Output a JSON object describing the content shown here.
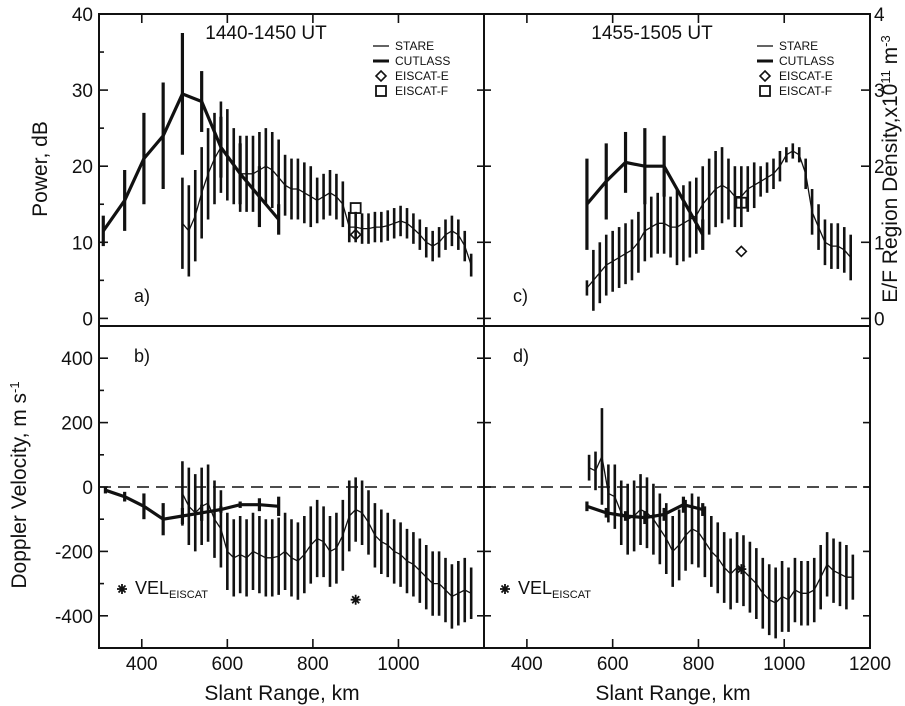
{
  "chart_data": [
    {
      "id": "a",
      "type": "line",
      "panel_label": "a)",
      "title": "1440-1450 UT",
      "xlabel": "Slant Range, km",
      "ylabel": "Power, dB",
      "y2label": "E/F Region Density,x10¹¹ m⁻³",
      "xlim": [
        300,
        1200
      ],
      "ylim": [
        -1,
        40
      ],
      "y2lim": [
        -0.1,
        4.0
      ],
      "legend": {
        "position": "top-right",
        "entries": [
          "STARE",
          "CUTLASS",
          "EISCAT-E",
          "EISCAT-F"
        ]
      },
      "series": [
        {
          "name": "STARE",
          "x": [
            495,
            510,
            525,
            540,
            555,
            570,
            585,
            600,
            615,
            630,
            645,
            660,
            675,
            690,
            705,
            720,
            735,
            750,
            765,
            780,
            795,
            810,
            825,
            840,
            855,
            870,
            885,
            900,
            915,
            930,
            945,
            960,
            975,
            990,
            1005,
            1020,
            1035,
            1050,
            1065,
            1080,
            1095,
            1110,
            1125,
            1140,
            1155,
            1170
          ],
          "y": [
            12.5,
            11.5,
            13.5,
            16.5,
            19,
            21,
            22.5,
            21.5,
            20,
            19,
            19,
            19,
            19.5,
            20,
            19.5,
            18.5,
            17.5,
            17,
            17,
            16.5,
            16,
            15.5,
            16,
            16.5,
            16,
            15,
            12,
            12,
            11.8,
            11.8,
            12,
            12,
            12.2,
            12.5,
            12.8,
            12.5,
            11.8,
            11,
            10,
            9.5,
            10,
            11,
            11.5,
            11,
            9.5,
            7
          ],
          "err": [
            6,
            6,
            6,
            6,
            6,
            6,
            6,
            6,
            5,
            5,
            5,
            5,
            5,
            5,
            5,
            5,
            4,
            4,
            4,
            4,
            4,
            3,
            3,
            3,
            3,
            3,
            2,
            2,
            2,
            2,
            2,
            2,
            2,
            2,
            2,
            2,
            2,
            2,
            2,
            2,
            2,
            2,
            2,
            2,
            2,
            1.5
          ]
        },
        {
          "name": "CUTLASS",
          "x": [
            310,
            360,
            405,
            450,
            495,
            540,
            585,
            630,
            675,
            720
          ],
          "y": [
            11.5,
            15.5,
            21,
            24,
            29.5,
            28.5,
            22.5,
            19,
            16,
            13
          ],
          "err": [
            2,
            4,
            6,
            7,
            8,
            4,
            4,
            4,
            4,
            2
          ]
        }
      ],
      "points": [
        {
          "name": "EISCAT-E",
          "x": 900,
          "y": 11
        },
        {
          "name": "EISCAT-F",
          "x": 900,
          "y": 14.5
        }
      ]
    },
    {
      "id": "c",
      "type": "line",
      "panel_label": "c)",
      "title": "1455-1505 UT",
      "xlim": [
        300,
        1200
      ],
      "ylim": [
        -1,
        40
      ],
      "y2lim": [
        -0.1,
        4.0
      ],
      "series": [
        {
          "name": "STARE",
          "x": [
            540,
            555,
            570,
            585,
            600,
            615,
            630,
            645,
            660,
            675,
            690,
            705,
            720,
            735,
            750,
            765,
            780,
            795,
            810,
            825,
            840,
            855,
            870,
            885,
            900,
            915,
            930,
            945,
            960,
            975,
            990,
            1005,
            1020,
            1035,
            1050,
            1065,
            1080,
            1095,
            1110,
            1125,
            1140,
            1155
          ],
          "y": [
            4,
            5,
            6,
            7,
            7.5,
            8,
            8.5,
            9,
            10,
            11.5,
            12,
            12.5,
            12.5,
            12,
            12,
            12.5,
            13,
            13.5,
            15,
            16,
            17,
            17.5,
            17,
            16,
            16,
            17,
            17.5,
            18,
            18.5,
            19,
            20,
            21.5,
            22,
            21.5,
            19,
            14,
            12,
            10,
            9.5,
            9.5,
            9,
            8
          ],
          "err": [
            1,
            4,
            4,
            4,
            4,
            4,
            4,
            4,
            4,
            4,
            4,
            4,
            4,
            4,
            5,
            5,
            5,
            5,
            5,
            5,
            5,
            5,
            4,
            4,
            4,
            3,
            3,
            2,
            2,
            2,
            2,
            1,
            1,
            1,
            2,
            3,
            3,
            3,
            3,
            3,
            3,
            3
          ]
        },
        {
          "name": "CUTLASS",
          "x": [
            540,
            585,
            630,
            675,
            720,
            810
          ],
          "y": [
            15,
            18,
            20.5,
            20,
            20,
            11
          ],
          "err": [
            6,
            5,
            4,
            5,
            4,
            2
          ]
        }
      ],
      "points": [
        {
          "name": "EISCAT-E",
          "x": 900,
          "y": 8.8
        },
        {
          "name": "EISCAT-F",
          "x": 900,
          "y": 15.2
        }
      ]
    },
    {
      "id": "b",
      "type": "line",
      "panel_label": "b)",
      "xlabel": "Slant Range, km",
      "ylabel": "Doppler Velocity, m s⁻¹",
      "xlim": [
        300,
        1200
      ],
      "ylim": [
        -500,
        500
      ],
      "series": [
        {
          "name": "STARE",
          "x": [
            495,
            510,
            525,
            540,
            555,
            570,
            585,
            600,
            615,
            630,
            645,
            660,
            675,
            690,
            705,
            720,
            735,
            750,
            765,
            780,
            795,
            810,
            825,
            840,
            855,
            870,
            885,
            900,
            915,
            930,
            945,
            960,
            975,
            990,
            1005,
            1020,
            1035,
            1050,
            1065,
            1080,
            1095,
            1110,
            1125,
            1140,
            1155,
            1170
          ],
          "y": [
            -20,
            -60,
            -80,
            -60,
            -50,
            -100,
            -130,
            -200,
            -220,
            -210,
            -220,
            -200,
            -210,
            -220,
            -220,
            -215,
            -200,
            -220,
            -230,
            -210,
            -180,
            -160,
            -170,
            -200,
            -190,
            -150,
            -90,
            -70,
            -80,
            -110,
            -150,
            -170,
            -180,
            -200,
            -210,
            -230,
            -240,
            -260,
            -280,
            -300,
            -300,
            -320,
            -340,
            -330,
            -320,
            -330
          ],
          "err": [
            100,
            120,
            120,
            120,
            120,
            120,
            120,
            120,
            120,
            120,
            120,
            120,
            120,
            120,
            120,
            120,
            120,
            120,
            120,
            120,
            120,
            120,
            110,
            110,
            110,
            110,
            110,
            100,
            100,
            100,
            100,
            100,
            100,
            100,
            100,
            100,
            100,
            100,
            100,
            100,
            100,
            100,
            100,
            100,
            100,
            80
          ]
        },
        {
          "name": "CUTLASS",
          "x": [
            315,
            360,
            405,
            450,
            495,
            540,
            585,
            630,
            675,
            720
          ],
          "y": [
            -10,
            -30,
            -60,
            -100,
            -90,
            -80,
            -70,
            -55,
            -55,
            -60
          ],
          "err": [
            10,
            15,
            40,
            50,
            25,
            25,
            10,
            10,
            20,
            30
          ]
        }
      ],
      "points": [
        {
          "name": "VEL_EISCAT",
          "x": 900,
          "y": -350
        }
      ],
      "annotation": {
        "text": "VEL",
        "sub": "EISCAT"
      },
      "zero_line": true
    },
    {
      "id": "d",
      "type": "line",
      "panel_label": "d)",
      "xlabel": "Slant Range, km",
      "xlim": [
        300,
        1200
      ],
      "ylim": [
        -500,
        500
      ],
      "xticks": [
        400,
        600,
        800,
        1000,
        1200
      ],
      "series": [
        {
          "name": "STARE",
          "x": [
            545,
            560,
            575,
            590,
            605,
            620,
            635,
            650,
            665,
            680,
            695,
            710,
            725,
            740,
            755,
            770,
            785,
            800,
            815,
            830,
            845,
            860,
            875,
            890,
            905,
            920,
            935,
            950,
            965,
            980,
            995,
            1010,
            1025,
            1040,
            1055,
            1070,
            1085,
            1100,
            1115,
            1130,
            1145,
            1160
          ],
          "y": [
            60,
            50,
            95,
            -20,
            -30,
            -80,
            -100,
            -90,
            -70,
            -80,
            -100,
            -130,
            -160,
            -200,
            -180,
            -150,
            -130,
            -140,
            -170,
            -200,
            -220,
            -250,
            -270,
            -250,
            -260,
            -280,
            -300,
            -330,
            -350,
            -360,
            -340,
            -350,
            -320,
            -330,
            -330,
            -320,
            -280,
            -240,
            -260,
            -270,
            -280,
            -280
          ],
          "err": [
            40,
            60,
            150,
            90,
            100,
            100,
            110,
            110,
            110,
            110,
            110,
            110,
            110,
            110,
            110,
            110,
            110,
            110,
            110,
            110,
            110,
            110,
            110,
            110,
            110,
            110,
            110,
            110,
            110,
            110,
            110,
            100,
            100,
            100,
            100,
            100,
            100,
            100,
            100,
            100,
            100,
            70
          ]
        },
        {
          "name": "CUTLASS",
          "x": [
            540,
            585,
            630,
            675,
            720,
            765,
            810
          ],
          "y": [
            -60,
            -80,
            -90,
            -95,
            -85,
            -55,
            -70
          ],
          "err": [
            15,
            15,
            15,
            20,
            20,
            25,
            20
          ]
        }
      ],
      "points": [
        {
          "name": "VEL_EISCAT",
          "x": 900,
          "y": -255
        }
      ],
      "annotation": {
        "text": "VEL",
        "sub": "EISCAT"
      },
      "zero_line": true
    }
  ],
  "ticks": {
    "power_y": [
      "0",
      "10",
      "20",
      "30",
      "40"
    ],
    "density_y2": [
      "0",
      "1",
      "2",
      "3",
      "4"
    ],
    "velocity_y": [
      "-400",
      "-200",
      "0",
      "200",
      "400"
    ],
    "left_x": [
      "400",
      "600",
      "800",
      "1000"
    ],
    "right_x": [
      "400",
      "600",
      "800",
      "1000",
      "1200"
    ]
  }
}
